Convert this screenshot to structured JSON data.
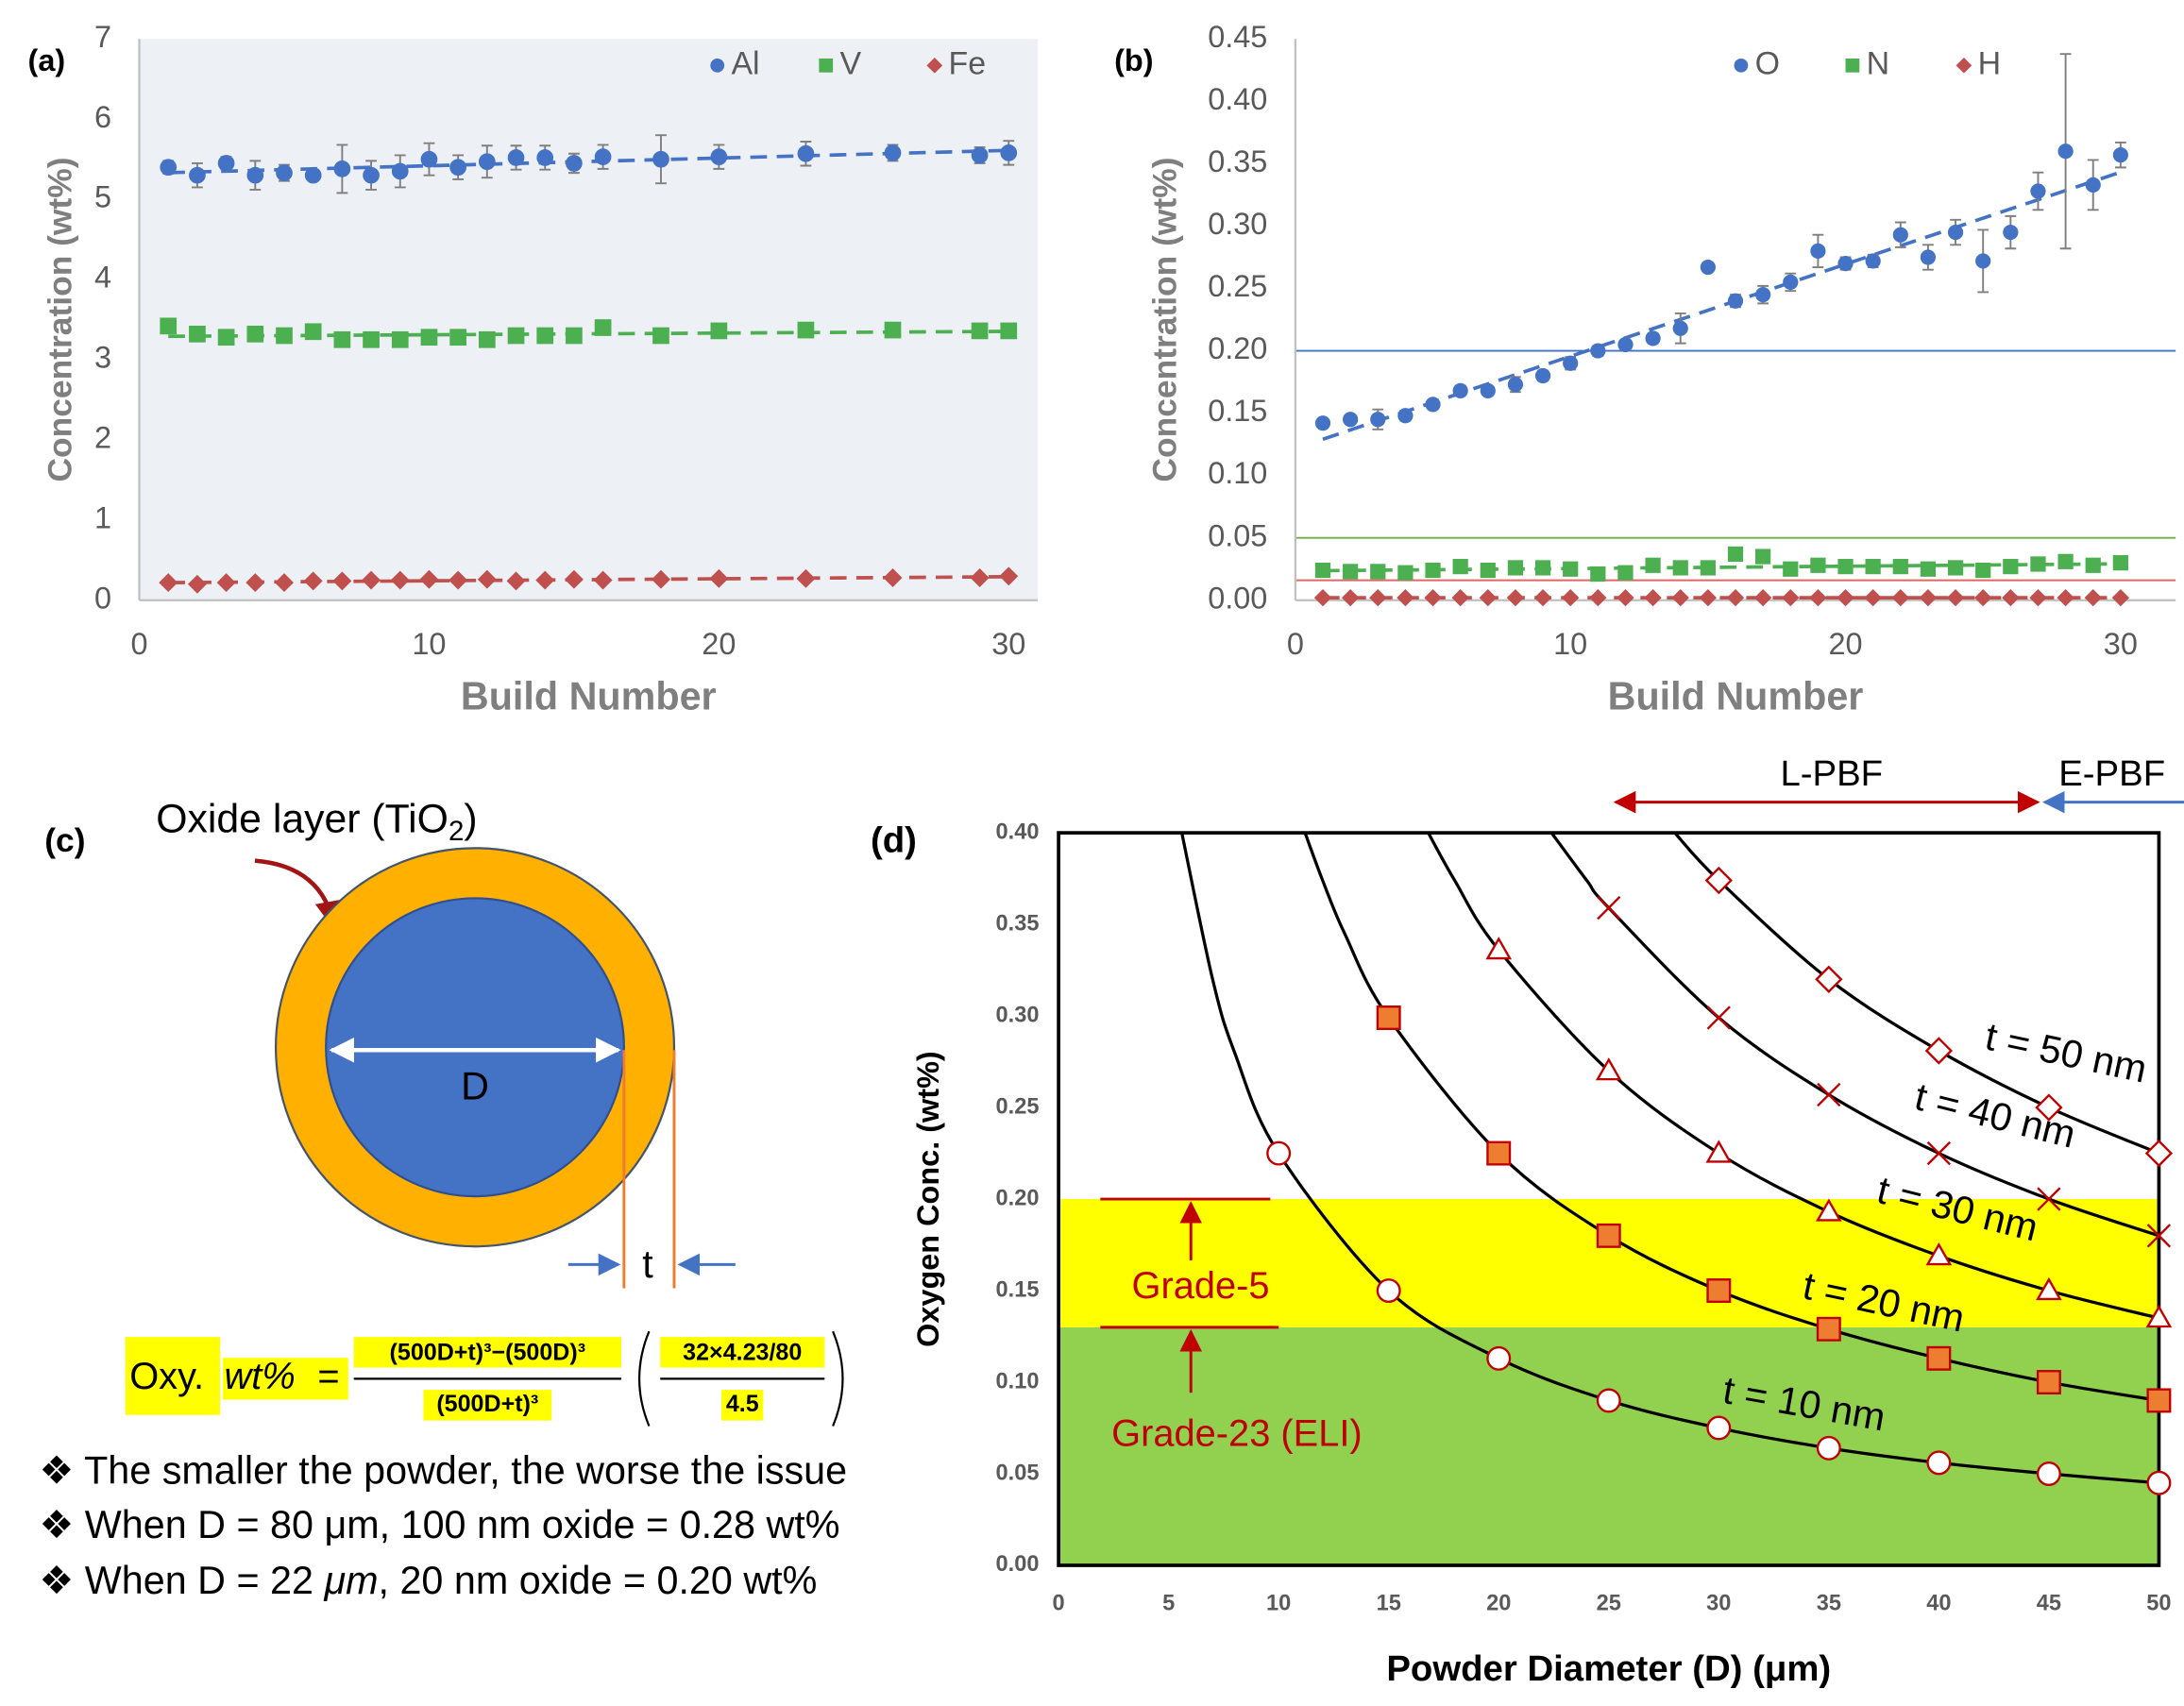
{
  "chart_data": [
    {
      "type": "scatter",
      "panel_label": "(a)",
      "y_label": "Concentration (wt%)",
      "x_label": "Build Number",
      "xlim": [
        0,
        31
      ],
      "xticks": [
        0,
        10,
        20,
        30
      ],
      "ylim": [
        0,
        7
      ],
      "yticks": [
        0,
        1,
        2,
        3,
        4,
        5,
        6,
        7
      ],
      "grid": false,
      "plot_background": "#edf0f5",
      "legend": "top-right",
      "trendline": true,
      "x": [
        1,
        2,
        3,
        4,
        5,
        6,
        7,
        8,
        9,
        10,
        11,
        12,
        13,
        14,
        15,
        16,
        18,
        20,
        23,
        26,
        29,
        30
      ],
      "series": [
        {
          "name": "Al",
          "color": "#4472c4",
          "marker": "circle",
          "values": [
            5.4,
            5.3,
            5.45,
            5.3,
            5.33,
            5.3,
            5.38,
            5.3,
            5.35,
            5.5,
            5.4,
            5.47,
            5.52,
            5.52,
            5.45,
            5.53,
            5.5,
            5.53,
            5.57,
            5.58,
            5.55,
            5.58
          ],
          "errors": [
            0.08,
            0.15,
            0.08,
            0.18,
            0.1,
            0.05,
            0.3,
            0.18,
            0.2,
            0.2,
            0.15,
            0.2,
            0.15,
            0.15,
            0.12,
            0.15,
            0.3,
            0.15,
            0.15,
            0.1,
            0.1,
            0.15
          ]
        },
        {
          "name": "V",
          "color": "#4caf50",
          "marker": "square",
          "values": [
            3.42,
            3.32,
            3.28,
            3.32,
            3.3,
            3.35,
            3.25,
            3.25,
            3.25,
            3.28,
            3.28,
            3.25,
            3.3,
            3.3,
            3.3,
            3.4,
            3.3,
            3.36,
            3.37,
            3.37,
            3.36,
            3.36
          ]
        },
        {
          "name": "Fe",
          "color": "#c0504d",
          "marker": "diamond",
          "values": [
            0.22,
            0.2,
            0.22,
            0.22,
            0.22,
            0.24,
            0.24,
            0.25,
            0.25,
            0.26,
            0.25,
            0.26,
            0.24,
            0.25,
            0.26,
            0.25,
            0.26,
            0.27,
            0.27,
            0.28,
            0.28,
            0.3
          ]
        }
      ]
    },
    {
      "type": "scatter",
      "panel_label": "(b)",
      "y_label": "Concentration (wt%)",
      "x_label": "Build Number",
      "xlim": [
        0,
        32
      ],
      "xticks": [
        0,
        10,
        20,
        30
      ],
      "ylim": [
        0,
        0.45
      ],
      "yticks": [
        {
          "value": 0,
          "label": "0.00"
        },
        {
          "value": 0.05,
          "label": "0.05"
        },
        {
          "value": 0.1,
          "label": "0.10"
        },
        {
          "value": 0.15,
          "label": "0.15"
        },
        {
          "value": 0.2,
          "label": "0.20"
        },
        {
          "value": 0.25,
          "label": "0.25"
        },
        {
          "value": 0.3,
          "label": "0.30"
        },
        {
          "value": 0.35,
          "label": "0.35"
        },
        {
          "value": 0.4,
          "label": "0.40"
        },
        {
          "value": 0.45,
          "label": "0.45"
        }
      ],
      "grid": false,
      "legend": "top-right",
      "trendline": true,
      "hlines": [
        {
          "value": 0.2,
          "color": "#4472c4"
        },
        {
          "value": 0.05,
          "color": "#70ad47"
        },
        {
          "value": 0.016,
          "color": "#e06666"
        }
      ],
      "x": [
        1,
        2,
        3,
        4,
        5,
        6,
        7,
        8,
        9,
        10,
        11,
        12,
        13,
        14,
        15,
        16,
        17,
        18,
        19,
        20,
        21,
        22,
        23,
        24,
        25,
        26,
        27,
        28,
        29,
        30
      ],
      "series": [
        {
          "name": "O",
          "color": "#4472c4",
          "marker": "circle",
          "values": [
            0.142,
            0.145,
            0.145,
            0.148,
            0.157,
            0.168,
            0.168,
            0.173,
            0.18,
            0.19,
            0.2,
            0.205,
            0.21,
            0.218,
            0.267,
            0.24,
            0.245,
            0.255,
            0.28,
            0.27,
            0.272,
            0.293,
            0.275,
            0.295,
            0.272,
            0.295,
            0.328,
            0.36,
            0.333,
            0.357
          ],
          "errors": [
            0.003,
            0.003,
            0.008,
            0.004,
            0.003,
            0.004,
            0.003,
            0.006,
            0.004,
            0.005,
            0.004,
            0.003,
            0.004,
            0.012,
            0.002,
            0.005,
            0.007,
            0.007,
            0.013,
            0.005,
            0.005,
            0.01,
            0.01,
            0.01,
            0.025,
            0.013,
            0.015,
            0.078,
            0.02,
            0.01
          ]
        },
        {
          "name": "N",
          "color": "#4caf50",
          "marker": "square",
          "values": [
            0.024,
            0.023,
            0.023,
            0.022,
            0.024,
            0.027,
            0.024,
            0.026,
            0.026,
            0.025,
            0.021,
            0.022,
            0.028,
            0.026,
            0.026,
            0.037,
            0.035,
            0.025,
            0.028,
            0.027,
            0.027,
            0.027,
            0.025,
            0.026,
            0.024,
            0.027,
            0.029,
            0.031,
            0.028,
            0.03
          ]
        },
        {
          "name": "H",
          "color": "#c0504d",
          "marker": "diamond",
          "values": [
            0.002,
            0.002,
            0.002,
            0.002,
            0.002,
            0.002,
            0.002,
            0.002,
            0.002,
            0.002,
            0.002,
            0.002,
            0.002,
            0.002,
            0.002,
            0.002,
            0.002,
            0.002,
            0.002,
            0.002,
            0.002,
            0.002,
            0.002,
            0.002,
            0.002,
            0.002,
            0.002,
            0.002,
            0.002,
            0.002
          ]
        }
      ]
    },
    {
      "type": "line",
      "panel_label": "(d)",
      "y_label": "Oxygen Conc. (wt%)",
      "x_label": "Powder Diameter (D) (μm)",
      "xlim": [
        0,
        50
      ],
      "xticks": [
        0,
        5,
        10,
        15,
        20,
        25,
        30,
        35,
        40,
        45,
        50
      ],
      "ylim": [
        0,
        0.4
      ],
      "yticks": [
        {
          "value": 0,
          "label": "0.00"
        },
        {
          "value": 0.05,
          "label": "0.05"
        },
        {
          "value": 0.1,
          "label": "0.10"
        },
        {
          "value": 0.15,
          "label": "0.15"
        },
        {
          "value": 0.2,
          "label": "0.20"
        },
        {
          "value": 0.25,
          "label": "0.25"
        },
        {
          "value": 0.3,
          "label": "0.30"
        },
        {
          "value": 0.35,
          "label": "0.35"
        },
        {
          "value": 0.4,
          "label": "0.40"
        }
      ],
      "grid": false,
      "bands": [
        {
          "from": 0,
          "to": 0.13,
          "color": "#92d050"
        },
        {
          "from": 0.13,
          "to": 0.2,
          "color": "#ffff00"
        }
      ],
      "annotations": {
        "lpbf": "L-PBF",
        "epbf": "E-PBF",
        "grade5": "Grade-5",
        "grade23": "Grade-23 (ELI)"
      },
      "series": [
        {
          "name": "t = 10 nm",
          "color": "#000000",
          "marker": "circle",
          "marker_fill": "#ffffff",
          "marker_stroke": "#c00000",
          "line_x": [
            5.6,
            7,
            8
          ],
          "line_values": [
            0.4,
            0.32,
            0.28
          ],
          "x": [
            10,
            15,
            20,
            25,
            30,
            35,
            40,
            45,
            50
          ],
          "values": [
            0.225,
            0.15,
            0.113,
            0.09,
            0.075,
            0.064,
            0.056,
            0.05,
            0.045
          ]
        },
        {
          "name": "t = 20 nm",
          "color": "#000000",
          "marker": "square",
          "marker_fill": "#ed7d31",
          "marker_stroke": "#c00000",
          "line_x": [
            11.2,
            12,
            13
          ],
          "line_values": [
            0.4,
            0.374,
            0.345
          ],
          "x": [
            15,
            20,
            25,
            30,
            35,
            40,
            45,
            50
          ],
          "values": [
            0.299,
            0.225,
            0.18,
            0.15,
            0.129,
            0.113,
            0.1,
            0.09
          ]
        },
        {
          "name": "t = 30 nm",
          "color": "#000000",
          "marker": "triangle",
          "marker_fill": "#ffffff",
          "marker_stroke": "#c00000",
          "line_x": [
            16.8,
            18
          ],
          "line_values": [
            0.4,
            0.374
          ],
          "x": [
            20,
            25,
            30,
            35,
            40,
            45,
            50
          ],
          "values": [
            0.336,
            0.27,
            0.225,
            0.193,
            0.169,
            0.15,
            0.135
          ]
        },
        {
          "name": "t = 40 nm",
          "color": "#000000",
          "marker": "x",
          "marker_fill": "none",
          "marker_stroke": "#c00000",
          "line_x": [
            22.4,
            24
          ],
          "line_values": [
            0.4,
            0.374
          ],
          "x": [
            25,
            30,
            35,
            40,
            45,
            50
          ],
          "values": [
            0.359,
            0.299,
            0.257,
            0.225,
            0.2,
            0.18
          ]
        },
        {
          "name": "t = 50 nm",
          "color": "#000000",
          "marker": "diamond",
          "marker_fill": "#ffffff",
          "marker_stroke": "#c00000",
          "line_x": [
            28
          ],
          "line_values": [
            0.4
          ],
          "x": [
            30,
            35,
            40,
            45,
            50
          ],
          "values": [
            0.374,
            0.32,
            0.281,
            0.25,
            0.225
          ]
        }
      ]
    }
  ],
  "diagram": {
    "panel_label": "(c)",
    "oxide_label": [
      "Oxide layer (TiO",
      "2",
      ")"
    ],
    "diameter_label": "D",
    "thickness_label": "t",
    "formula": {
      "lhs": "Oxy.",
      "var": "wt%",
      "eq": "=",
      "numerator": "(500D+t)³−(500D)³",
      "denominator": "(500D+t)³",
      "inner_numerator": "32×4.23/80",
      "inner_denominator": "4.5"
    },
    "bullets": [
      [
        "❖ The smaller the powder, the worse the issue"
      ],
      [
        "❖ When D = 80 μm, 100 nm oxide = 0.28 wt%"
      ],
      [
        "❖ When D = 22 ",
        "μm",
        ", 20 nm oxide = 0.20 wt%"
      ]
    ]
  }
}
